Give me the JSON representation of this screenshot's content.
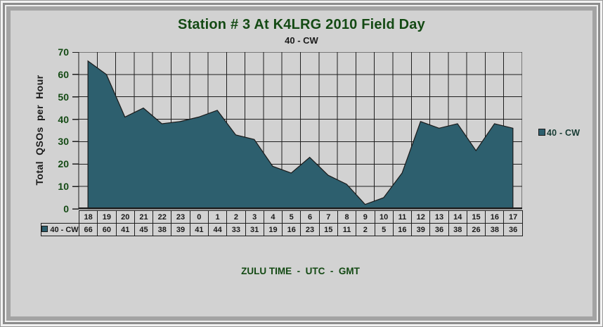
{
  "chart_data": {
    "type": "area",
    "title": "Station # 3 At K4LRG 2010 Field Day",
    "subtitle": "40 - CW",
    "ylabel": "Total QSOs per Hour",
    "xlabel": "ZULU TIME  -  UTC  -  GMT",
    "categories": [
      "18",
      "19",
      "20",
      "21",
      "22",
      "23",
      "0",
      "1",
      "2",
      "3",
      "4",
      "5",
      "6",
      "7",
      "8",
      "9",
      "10",
      "11",
      "12",
      "13",
      "14",
      "15",
      "16",
      "17"
    ],
    "series": [
      {
        "name": "40 - CW",
        "values": [
          66,
          60,
          41,
          45,
          38,
          39,
          41,
          44,
          33,
          31,
          19,
          16,
          23,
          15,
          11,
          2,
          5,
          16,
          39,
          36,
          38,
          26,
          38,
          36
        ]
      }
    ],
    "ylim": [
      0,
      70
    ],
    "ytick_step": 10,
    "yticks": [
      70,
      60,
      50,
      40,
      30,
      20,
      10,
      0
    ],
    "grid": true,
    "legend_position": "right",
    "colors": {
      "background": "#d2d2d2",
      "title_text": "#144a14",
      "subtitle_text": "#1a1a1a",
      "tick_text": "#144a14",
      "xlabel_text": "#144a14",
      "table_text": "#1a1a1a",
      "legend_text": "#173b33",
      "grid_line": "#1f1f1f",
      "area_fill": "#2d5f6e",
      "area_stroke": "#1a1a1a"
    }
  }
}
